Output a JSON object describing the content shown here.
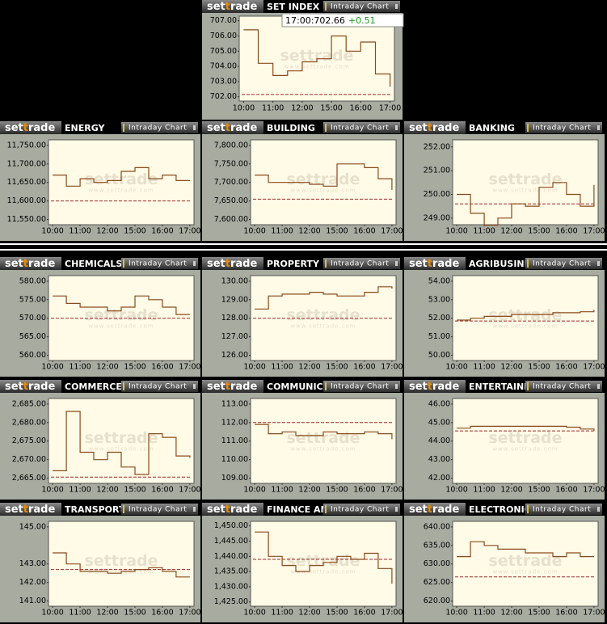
{
  "brand": {
    "logo": [
      "set",
      "t",
      "rade"
    ],
    "button": "Intraday Chart",
    "watermark": "settrade",
    "watermark_url": "www.settrade.com"
  },
  "tooltip": {
    "time": "17:00:",
    "value": 702.66,
    "change": "+0.51"
  },
  "chart_data": [
    {
      "type": "line",
      "title": "SET INDEX",
      "color": "#8b4a1c",
      "reference": 702.15,
      "reference_color": "#a02828",
      "x": [
        0,
        0.5,
        1,
        1.5,
        2,
        2.5,
        3,
        3.5,
        4,
        4.5,
        5
      ],
      "values": [
        706.4,
        704.2,
        703.4,
        703.7,
        704.3,
        704.5,
        706.0,
        705.0,
        705.6,
        703.5,
        702.66
      ],
      "xlim": [
        -0.15,
        5.15
      ],
      "xticks": [
        {
          "value": 0,
          "label": "10:00"
        },
        {
          "value": 1,
          "label": "11:00"
        },
        {
          "value": 2,
          "label": "12:00"
        },
        {
          "value": 3,
          "label": "15:00"
        },
        {
          "value": 4,
          "label": "16:00"
        },
        {
          "value": 5,
          "label": "17:00"
        }
      ],
      "ylim": [
        701.72,
        707.3
      ],
      "yticks": [
        {
          "value": 702,
          "label": "702.00"
        },
        {
          "value": 703,
          "label": "703.00"
        },
        {
          "value": 704,
          "label": "704.00"
        },
        {
          "value": 705,
          "label": "705.00"
        },
        {
          "value": 706,
          "label": "706.00"
        },
        {
          "value": 707,
          "label": "707.00"
        }
      ]
    },
    {
      "type": "line",
      "title": "ENERGY",
      "color": "#8b4a1c",
      "reference": 11600,
      "reference_color": "#a02828",
      "x": [
        0,
        0.5,
        1,
        1.5,
        2,
        2.5,
        3,
        3.5,
        4,
        4.5,
        5
      ],
      "values": [
        11670,
        11640,
        11660,
        11650,
        11655,
        11680,
        11690,
        11660,
        11670,
        11655,
        11655
      ],
      "xlim": [
        -0.15,
        5.15
      ],
      "xticks": [
        {
          "value": 0,
          "label": "10:00"
        },
        {
          "value": 1,
          "label": "11:00"
        },
        {
          "value": 2,
          "label": "12:00"
        },
        {
          "value": 3,
          "label": "15:00"
        },
        {
          "value": 4,
          "label": "16:00"
        },
        {
          "value": 5,
          "label": "17:00"
        }
      ],
      "ylim": [
        11536,
        11765
      ],
      "yticks": [
        {
          "value": 11550,
          "label": "11,550.00"
        },
        {
          "value": 11600,
          "label": "11,600.00"
        },
        {
          "value": 11650,
          "label": "11,650.00"
        },
        {
          "value": 11700,
          "label": "11,700.00"
        },
        {
          "value": 11750,
          "label": "11,750.00"
        }
      ]
    },
    {
      "type": "line",
      "title": "BUILDING",
      "color": "#8b4a1c",
      "reference": 7655,
      "reference_color": "#a02828",
      "x": [
        0,
        0.5,
        1,
        1.5,
        2,
        2.5,
        3,
        3.5,
        4,
        4.5,
        5
      ],
      "values": [
        7720,
        7700,
        7700,
        7700,
        7695,
        7690,
        7750,
        7750,
        7740,
        7710,
        7680
      ],
      "xlim": [
        -0.15,
        5.15
      ],
      "xticks": [
        {
          "value": 0,
          "label": "10:00"
        },
        {
          "value": 1,
          "label": "11:00"
        },
        {
          "value": 2,
          "label": "12:00"
        },
        {
          "value": 3,
          "label": "15:00"
        },
        {
          "value": 4,
          "label": "16:00"
        },
        {
          "value": 5,
          "label": "17:00"
        }
      ],
      "ylim": [
        7586,
        7815
      ],
      "yticks": [
        {
          "value": 7600,
          "label": "7,600.00"
        },
        {
          "value": 7650,
          "label": "7,650.00"
        },
        {
          "value": 7700,
          "label": "7,700.00"
        },
        {
          "value": 7750,
          "label": "7,750.00"
        },
        {
          "value": 7800,
          "label": "7,800.00"
        }
      ]
    },
    {
      "type": "line",
      "title": "BANKING",
      "color": "#8b4a1c",
      "reference": 249.6,
      "reference_color": "#a02828",
      "x": [
        0,
        0.5,
        1,
        1.5,
        2,
        2.5,
        3,
        3.5,
        4,
        4.5,
        5
      ],
      "values": [
        250.0,
        249.2,
        248.7,
        249.0,
        249.6,
        249.5,
        250.3,
        250.5,
        250.0,
        249.5,
        250.4
      ],
      "xlim": [
        -0.15,
        5.15
      ],
      "xticks": [
        {
          "value": 0,
          "label": "10:00"
        },
        {
          "value": 1,
          "label": "11:00"
        },
        {
          "value": 2,
          "label": "12:00"
        },
        {
          "value": 3,
          "label": "15:00"
        },
        {
          "value": 4,
          "label": "16:00"
        },
        {
          "value": 5,
          "label": "17:00"
        }
      ],
      "ylim": [
        248.72,
        252.3
      ],
      "yticks": [
        {
          "value": 249,
          "label": "249.00"
        },
        {
          "value": 250,
          "label": "250.00"
        },
        {
          "value": 251,
          "label": "251.00"
        },
        {
          "value": 252,
          "label": "252.00"
        }
      ]
    },
    {
      "type": "line",
      "title": "CHEMICALS",
      "color": "#8b4a1c",
      "reference": 570,
      "reference_color": "#a02828",
      "x": [
        0,
        0.5,
        1,
        1.5,
        2,
        2.5,
        3,
        3.5,
        4,
        4.5,
        5
      ],
      "values": [
        576,
        574,
        573,
        573,
        572,
        573,
        576,
        575,
        573,
        571,
        571
      ],
      "xlim": [
        -0.15,
        5.15
      ],
      "xticks": [
        {
          "value": 0,
          "label": "10:00"
        },
        {
          "value": 1,
          "label": "11:00"
        },
        {
          "value": 2,
          "label": "12:00"
        },
        {
          "value": 3,
          "label": "15:00"
        },
        {
          "value": 4,
          "label": "16:00"
        },
        {
          "value": 5,
          "label": "17:00"
        }
      ],
      "ylim": [
        558.6,
        581.5
      ],
      "yticks": [
        {
          "value": 560,
          "label": "560.00"
        },
        {
          "value": 565,
          "label": "565.00"
        },
        {
          "value": 570,
          "label": "570.00"
        },
        {
          "value": 575,
          "label": "575.00"
        },
        {
          "value": 580,
          "label": "580.00"
        }
      ]
    },
    {
      "type": "line",
      "title": "PROPERTY",
      "color": "#8b4a1c",
      "reference": 128,
      "reference_color": "#a02828",
      "x": [
        0,
        0.5,
        1,
        1.5,
        2,
        2.5,
        3,
        3.5,
        4,
        4.5,
        5
      ],
      "values": [
        128.5,
        129.2,
        129.3,
        129.3,
        129.4,
        129.3,
        129.2,
        129.2,
        129.4,
        129.7,
        129.6
      ],
      "xlim": [
        -0.15,
        5.15
      ],
      "xticks": [
        {
          "value": 0,
          "label": "10:00"
        },
        {
          "value": 1,
          "label": "11:00"
        },
        {
          "value": 2,
          "label": "12:00"
        },
        {
          "value": 3,
          "label": "15:00"
        },
        {
          "value": 4,
          "label": "16:00"
        },
        {
          "value": 5,
          "label": "17:00"
        }
      ],
      "ylim": [
        125.72,
        130.3
      ],
      "yticks": [
        {
          "value": 126,
          "label": "126.00"
        },
        {
          "value": 127,
          "label": "127.00"
        },
        {
          "value": 128,
          "label": "128.00"
        },
        {
          "value": 129,
          "label": "129.00"
        },
        {
          "value": 130,
          "label": "130.00"
        }
      ]
    },
    {
      "type": "line",
      "title": "AGRIBUSINESS",
      "color": "#8b4a1c",
      "reference": 51.85,
      "reference_color": "#a02828",
      "x": [
        0,
        0.5,
        1,
        1.5,
        2,
        2.5,
        3,
        3.5,
        4,
        4.5,
        5
      ],
      "values": [
        51.9,
        52.0,
        52.1,
        52.1,
        52.2,
        52.2,
        52.2,
        52.3,
        52.3,
        52.35,
        52.45
      ],
      "xlim": [
        -0.15,
        5.15
      ],
      "xticks": [
        {
          "value": 0,
          "label": "10:00"
        },
        {
          "value": 1,
          "label": "11:00"
        },
        {
          "value": 2,
          "label": "12:00"
        },
        {
          "value": 3,
          "label": "15:00"
        },
        {
          "value": 4,
          "label": "16:00"
        },
        {
          "value": 5,
          "label": "17:00"
        }
      ],
      "ylim": [
        49.72,
        54.3
      ],
      "yticks": [
        {
          "value": 50,
          "label": "50.00"
        },
        {
          "value": 51,
          "label": "51.00"
        },
        {
          "value": 52,
          "label": "52.00"
        },
        {
          "value": 53,
          "label": "53.00"
        },
        {
          "value": 54,
          "label": "54.00"
        }
      ]
    },
    {
      "type": "line",
      "title": "COMMERCE",
      "color": "#8b4a1c",
      "reference": 2665.3,
      "reference_color": "#a02828",
      "x": [
        0,
        0.5,
        1,
        1.5,
        2,
        2.5,
        3,
        3.5,
        4,
        4.5,
        5
      ],
      "values": [
        2667,
        2683,
        2672,
        2670,
        2672,
        2668,
        2666,
        2677,
        2676,
        2671,
        2670.5
      ],
      "xlim": [
        -0.15,
        5.15
      ],
      "xticks": [
        {
          "value": 0,
          "label": "10:00"
        },
        {
          "value": 1,
          "label": "11:00"
        },
        {
          "value": 2,
          "label": "12:00"
        },
        {
          "value": 3,
          "label": "15:00"
        },
        {
          "value": 4,
          "label": "16:00"
        },
        {
          "value": 5,
          "label": "17:00"
        }
      ],
      "ylim": [
        2663.6,
        2686.5
      ],
      "yticks": [
        {
          "value": 2665,
          "label": "2,665.00"
        },
        {
          "value": 2670,
          "label": "2,670.00"
        },
        {
          "value": 2675,
          "label": "2,675.00"
        },
        {
          "value": 2680,
          "label": "2,680.00"
        },
        {
          "value": 2685,
          "label": "2,685.00"
        }
      ]
    },
    {
      "type": "line",
      "title": "COMMUNICATION",
      "color": "#8b4a1c",
      "reference": 112,
      "reference_color": "#a02828",
      "x": [
        0,
        0.5,
        1,
        1.5,
        2,
        2.5,
        3,
        3.5,
        4,
        4.5,
        5
      ],
      "values": [
        111.9,
        111.4,
        111.5,
        111.3,
        111.3,
        111.5,
        111.4,
        111.4,
        111.5,
        111.4,
        111.1
      ],
      "xlim": [
        -0.15,
        5.15
      ],
      "xticks": [
        {
          "value": 0,
          "label": "10:00"
        },
        {
          "value": 1,
          "label": "11:00"
        },
        {
          "value": 2,
          "label": "12:00"
        },
        {
          "value": 3,
          "label": "15:00"
        },
        {
          "value": 4,
          "label": "16:00"
        },
        {
          "value": 5,
          "label": "17:00"
        }
      ],
      "ylim": [
        108.72,
        113.3
      ],
      "yticks": [
        {
          "value": 109,
          "label": "109.00"
        },
        {
          "value": 110,
          "label": "110.00"
        },
        {
          "value": 111,
          "label": "111.00"
        },
        {
          "value": 112,
          "label": "112.00"
        },
        {
          "value": 113,
          "label": "113.00"
        }
      ]
    },
    {
      "type": "line",
      "title": "ENTERTAINMENT",
      "color": "#8b4a1c",
      "reference": 44.55,
      "reference_color": "#a02828",
      "x": [
        0,
        0.5,
        1,
        1.5,
        2,
        2.5,
        3,
        3.5,
        4,
        4.5,
        5
      ],
      "values": [
        44.7,
        44.8,
        44.8,
        44.8,
        44.8,
        44.8,
        44.8,
        44.8,
        44.75,
        44.65,
        44.55
      ],
      "xlim": [
        -0.15,
        5.15
      ],
      "xticks": [
        {
          "value": 0,
          "label": "10:00"
        },
        {
          "value": 1,
          "label": "11:00"
        },
        {
          "value": 2,
          "label": "12:00"
        },
        {
          "value": 3,
          "label": "15:00"
        },
        {
          "value": 4,
          "label": "16:00"
        },
        {
          "value": 5,
          "label": "17:00"
        }
      ],
      "ylim": [
        41.72,
        46.3
      ],
      "yticks": [
        {
          "value": 42,
          "label": "42.00"
        },
        {
          "value": 43,
          "label": "43.00"
        },
        {
          "value": 44,
          "label": "44.00"
        },
        {
          "value": 45,
          "label": "45.00"
        },
        {
          "value": 46,
          "label": "46.00"
        }
      ]
    },
    {
      "type": "line",
      "title": "TRANSPORTATION",
      "color": "#8b4a1c",
      "reference": 142.7,
      "reference_color": "#a02828",
      "x": [
        0,
        0.5,
        1,
        1.5,
        2,
        2.5,
        3,
        3.5,
        4,
        4.5,
        5
      ],
      "values": [
        143.6,
        143.0,
        142.6,
        142.6,
        142.5,
        142.6,
        142.7,
        142.8,
        142.6,
        142.3,
        142.3
      ],
      "xlim": [
        -0.15,
        5.15
      ],
      "xticks": [
        {
          "value": 0,
          "label": "10:00"
        },
        {
          "value": 1,
          "label": "11:00"
        },
        {
          "value": 2,
          "label": "12:00"
        },
        {
          "value": 3,
          "label": "15:00"
        },
        {
          "value": 4,
          "label": "16:00"
        },
        {
          "value": 5,
          "label": "17:00"
        }
      ],
      "ylim": [
        140.72,
        145.3
      ],
      "yticks": [
        {
          "value": 141,
          "label": "141.00"
        },
        {
          "value": 142,
          "label": "142.00"
        },
        {
          "value": 143,
          "label": "143.00"
        },
        {
          "value": 145,
          "label": "145.00"
        }
      ]
    },
    {
      "type": "line",
      "title": "FINANCE AND SECURITIES",
      "color": "#8b4a1c",
      "reference": 1439,
      "reference_color": "#a02828",
      "x": [
        0,
        0.5,
        1,
        1.5,
        2,
        2.5,
        3,
        3.5,
        4,
        4.5,
        5
      ],
      "values": [
        1448,
        1440,
        1437,
        1435,
        1437,
        1438,
        1440,
        1439,
        1441,
        1436,
        1431
      ],
      "xlim": [
        -0.15,
        5.15
      ],
      "xticks": [
        {
          "value": 0,
          "label": "10:00"
        },
        {
          "value": 1,
          "label": "11:00"
        },
        {
          "value": 2,
          "label": "12:00"
        },
        {
          "value": 3,
          "label": "15:00"
        },
        {
          "value": 4,
          "label": "16:00"
        },
        {
          "value": 5,
          "label": "17:00"
        }
      ],
      "ylim": [
        1423.6,
        1451.5
      ],
      "yticks": [
        {
          "value": 1425,
          "label": "1,425.00"
        },
        {
          "value": 1430,
          "label": "1,430.00"
        },
        {
          "value": 1435,
          "label": "1,435.00"
        },
        {
          "value": 1440,
          "label": "1,440.00"
        },
        {
          "value": 1445,
          "label": "1,445.00"
        },
        {
          "value": 1450,
          "label": "1,450.00"
        }
      ]
    },
    {
      "type": "line",
      "title": "ELECTRONIC",
      "color": "#8b4a1c",
      "reference": 626.5,
      "reference_color": "#a02828",
      "x": [
        0,
        0.5,
        1,
        1.5,
        2,
        2.5,
        3,
        3.5,
        4,
        4.5,
        5
      ],
      "values": [
        632,
        636,
        635,
        634,
        634,
        633,
        633,
        632,
        633,
        632,
        632
      ],
      "xlim": [
        -0.15,
        5.15
      ],
      "xticks": [
        {
          "value": 0,
          "label": "10:00"
        },
        {
          "value": 1,
          "label": "11:00"
        },
        {
          "value": 2,
          "label": "12:00"
        },
        {
          "value": 3,
          "label": "15:00"
        },
        {
          "value": 4,
          "label": "16:00"
        },
        {
          "value": 5,
          "label": "17:00"
        }
      ],
      "ylim": [
        618.6,
        641.5
      ],
      "yticks": [
        {
          "value": 620,
          "label": "620.00"
        },
        {
          "value": 625,
          "label": "625.00"
        },
        {
          "value": 630,
          "label": "630.00"
        },
        {
          "value": 635,
          "label": "635.00"
        },
        {
          "value": 640,
          "label": "640.00"
        }
      ]
    }
  ]
}
